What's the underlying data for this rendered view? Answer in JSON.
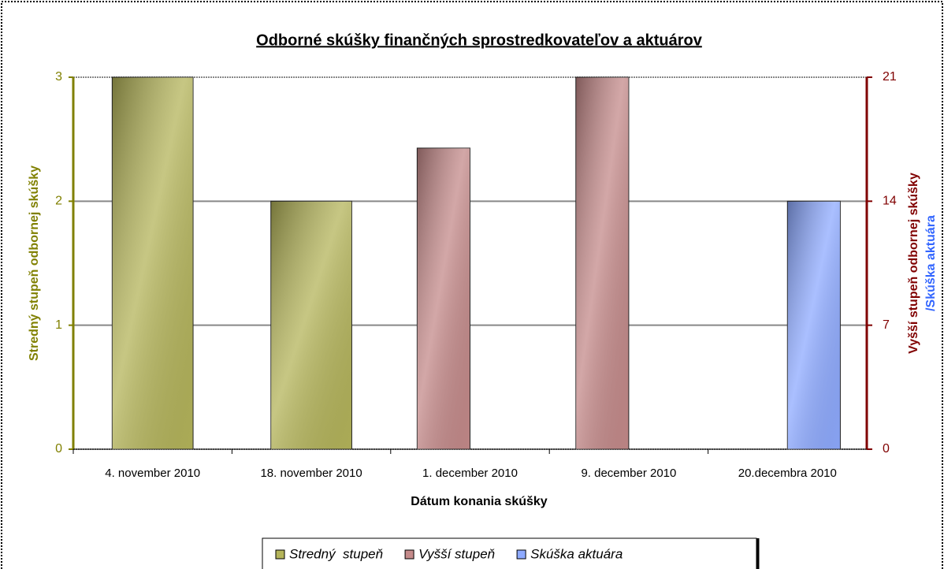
{
  "chart_data": {
    "type": "bar",
    "title": "Odborné skúšky finančných sprostredkovateľov a aktuárov",
    "x_label": "Dátum konania skúšky",
    "y_label": "Stredný stupeň odbornej skúšky",
    "y2_label": [
      "Vyšší stupeň odbornej skúšky",
      "/Skúška aktuára"
    ],
    "categories": [
      "4. november 2010",
      "18. november 2010",
      "1. december 2010",
      "9. december 2010",
      "20.decembra 2010"
    ],
    "ylim": [
      0,
      3
    ],
    "yticks": [
      0,
      1,
      2,
      3
    ],
    "y2lim": [
      0,
      21
    ],
    "y2ticks": [
      0,
      7,
      14,
      21
    ],
    "grid": true,
    "legend": "bottom",
    "series": [
      {
        "name": "Stredný  stupeň",
        "color": "#b4b45a",
        "axis": "y",
        "values": [
          3,
          2,
          null,
          null,
          null
        ]
      },
      {
        "name": "Vyšší stupeň",
        "color": "#c48a8a",
        "axis": "y2",
        "values": [
          null,
          null,
          17,
          21,
          null
        ]
      },
      {
        "name": "Skúška aktuára",
        "color": "#8eaaff",
        "axis": "y2",
        "values": [
          null,
          null,
          null,
          null,
          14
        ]
      }
    ]
  }
}
